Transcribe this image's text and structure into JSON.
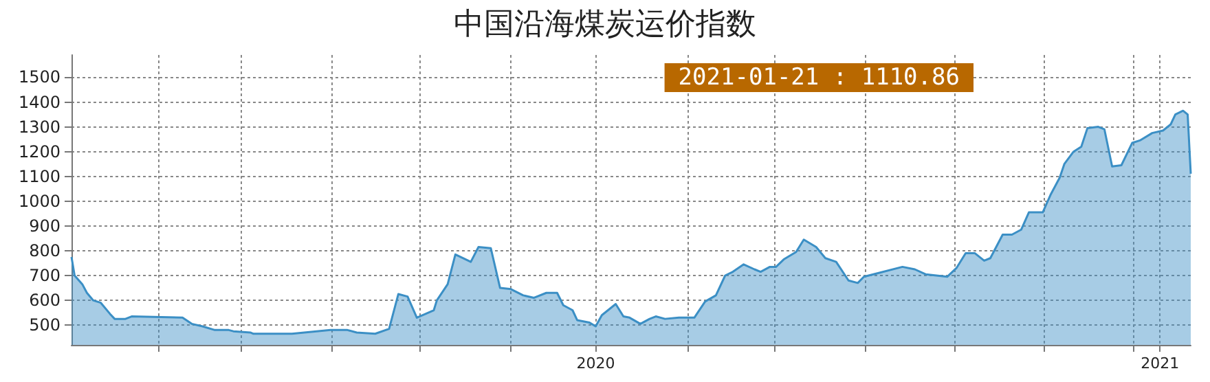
{
  "chart_data": {
    "type": "area",
    "title": "中国沿海煤炭运价指数",
    "annotations": [
      "2021-01-21 : 1110.86"
    ],
    "x": [
      "2019-01-26",
      "2019-01-28",
      "2019-02-02",
      "2019-02-05",
      "2019-02-09",
      "2019-02-14",
      "2019-02-20",
      "2019-02-23",
      "2019-03-02",
      "2019-03-06",
      "2019-04-08",
      "2019-04-14",
      "2019-04-21",
      "2019-04-29",
      "2019-05-08",
      "2019-05-11",
      "2019-05-22",
      "2019-05-24",
      "2019-06-18",
      "2019-07-04",
      "2019-07-13",
      "2019-07-24",
      "2019-07-30",
      "2019-08-11",
      "2019-08-20",
      "2019-08-26",
      "2019-09-01",
      "2019-09-07",
      "2019-09-18",
      "2019-09-20",
      "2019-09-27",
      "2019-10-02",
      "2019-10-12",
      "2019-10-17",
      "2019-10-25",
      "2019-10-31",
      "2019-11-07",
      "2019-11-15",
      "2019-11-22",
      "2019-11-30",
      "2019-12-07",
      "2019-12-11",
      "2019-12-17",
      "2019-12-20",
      "2019-12-28",
      "2020-01-01",
      "2020-01-05",
      "2020-01-14",
      "2020-01-19",
      "2020-01-23",
      "2020-01-30",
      "2020-02-05",
      "2020-02-09",
      "2020-02-15",
      "2020-02-24",
      "2020-03-05",
      "2020-03-12",
      "2020-03-19",
      "2020-03-25",
      "2020-03-30",
      "2020-04-06",
      "2020-04-13",
      "2020-04-17",
      "2020-04-23",
      "2020-04-27",
      "2020-05-02",
      "2020-05-10",
      "2020-05-15",
      "2020-05-23",
      "2020-05-29",
      "2020-06-05",
      "2020-06-13",
      "2020-06-19",
      "2020-06-23",
      "2020-07-18",
      "2020-07-26",
      "2020-08-02",
      "2020-08-16",
      "2020-08-22",
      "2020-08-28",
      "2020-09-03",
      "2020-09-09",
      "2020-09-13",
      "2020-09-21",
      "2020-09-27",
      "2020-10-03",
      "2020-10-08",
      "2020-10-17",
      "2020-10-22",
      "2020-10-28",
      "2020-10-31",
      "2020-11-06",
      "2020-11-11",
      "2020-11-15",
      "2020-11-22",
      "2020-11-26",
      "2020-12-01",
      "2020-12-07",
      "2020-12-14",
      "2020-12-19",
      "2020-12-27",
      "2021-01-03",
      "2021-01-08",
      "2021-01-11",
      "2021-01-16",
      "2021-01-19",
      "2021-01-21"
    ],
    "series": [
      {
        "color": "#3b8fc5",
        "values": [
          775,
          700,
          665,
          630,
          600,
          590,
          545,
          525,
          525,
          535,
          530,
          505,
          495,
          480,
          480,
          475,
          470,
          465,
          465,
          475,
          480,
          480,
          470,
          465,
          485,
          625,
          615,
          530,
          560,
          600,
          665,
          785,
          755,
          815,
          810,
          650,
          645,
          620,
          610,
          630,
          630,
          580,
          560,
          520,
          510,
          495,
          540,
          585,
          535,
          530,
          505,
          525,
          535,
          525,
          530,
          530,
          595,
          620,
          700,
          715,
          745,
          725,
          715,
          735,
          735,
          765,
          795,
          845,
          815,
          770,
          755,
          680,
          670,
          695,
          735,
          725,
          705,
          695,
          730,
          790,
          790,
          760,
          770,
          865,
          865,
          885,
          955,
          955,
          1025,
          1095,
          1150,
          1200,
          1220,
          1295,
          1300,
          1290,
          1140,
          1145,
          1235,
          1245,
          1275,
          1285,
          1310,
          1350,
          1365,
          1350,
          1110.86
        ]
      }
    ],
    "xlim": [
      "2019-01-26",
      "2021-01-21"
    ],
    "xticks": [
      {
        "value": "2019-03-23",
        "label": null
      },
      {
        "value": "2019-05-16",
        "label": null
      },
      {
        "value": "2019-07-14",
        "label": null
      },
      {
        "value": "2019-09-09",
        "label": null
      },
      {
        "value": "2019-11-07",
        "label": null
      },
      {
        "value": "2020-01-01",
        "label": "2020"
      },
      {
        "value": "2020-03-01",
        "label": null
      },
      {
        "value": "2020-04-26",
        "label": null
      },
      {
        "value": "2020-06-24",
        "label": null
      },
      {
        "value": "2020-08-21",
        "label": null
      },
      {
        "value": "2020-10-18",
        "label": null
      },
      {
        "value": "2020-12-15",
        "label": null
      },
      {
        "value": "2021-01-01",
        "label": "2021"
      }
    ],
    "ylim": [
      420,
      1590
    ],
    "yticks": [
      500,
      600,
      700,
      800,
      900,
      1000,
      1100,
      1200,
      1300,
      1400,
      1500
    ],
    "grid": true,
    "marker": "none",
    "line_style": "solid"
  }
}
